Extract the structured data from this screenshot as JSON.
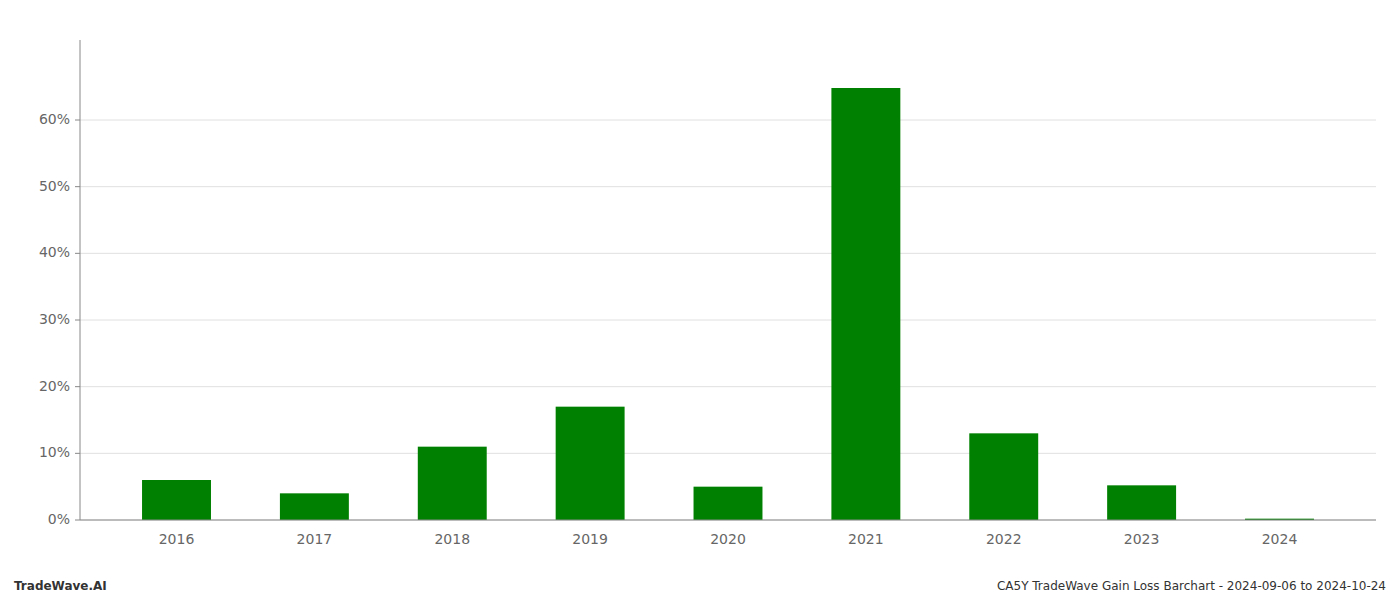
{
  "chart_data": {
    "type": "bar",
    "categories": [
      "2016",
      "2017",
      "2018",
      "2019",
      "2020",
      "2021",
      "2022",
      "2023",
      "2024"
    ],
    "values": [
      0.06,
      0.04,
      0.11,
      0.17,
      0.05,
      0.648,
      0.13,
      0.052,
      0.002
    ],
    "color": "#008000",
    "ylim": [
      0,
      0.72
    ],
    "yticks": [
      {
        "value": 0.0,
        "label": "0%"
      },
      {
        "value": 0.1,
        "label": "10%"
      },
      {
        "value": 0.2,
        "label": "20%"
      },
      {
        "value": 0.3,
        "label": "30%"
      },
      {
        "value": 0.4,
        "label": "40%"
      },
      {
        "value": 0.5,
        "label": "50%"
      },
      {
        "value": 0.6,
        "label": "60%"
      }
    ],
    "grid": true,
    "annotations": [
      "TradeWave.AI",
      "CA5Y TradeWave Gain Loss Barchart - 2024-09-06 to 2024-10-24"
    ]
  }
}
